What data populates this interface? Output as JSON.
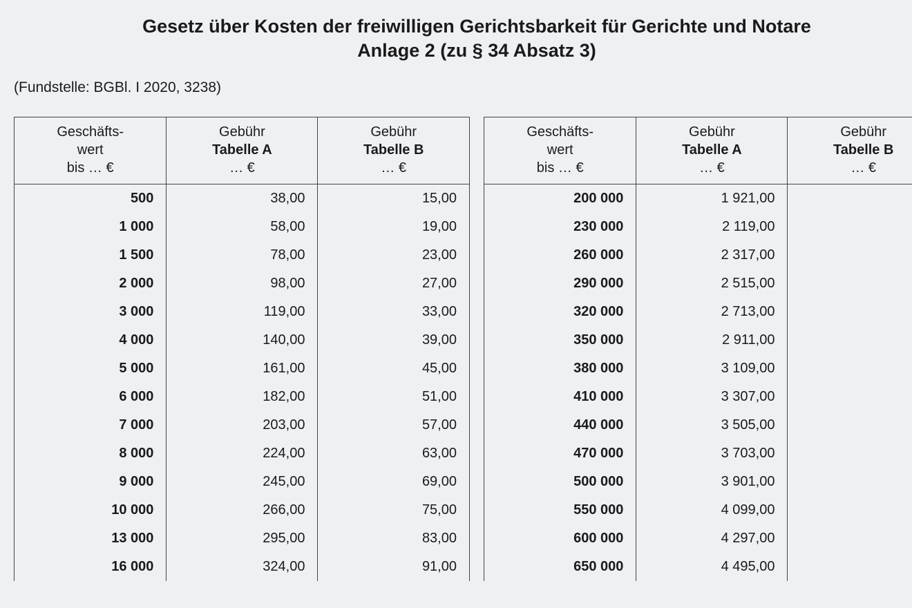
{
  "header": {
    "title": "Gesetz über Kosten der freiwilligen Gerichtsbarkeit für Gerichte und Notare",
    "subtitle": "Anlage 2 (zu § 34 Absatz 3)",
    "source": "(Fundstelle: BGBl. I 2020, 3238)"
  },
  "tableHeaders": {
    "col1_l1": "Geschäfts-",
    "col1_l2": "wert",
    "col1_l3": "bis … €",
    "col2_l1": "Gebühr",
    "col2_l2": "Tabelle A",
    "col2_l3": "… €",
    "col3_l1": "Gebühr",
    "col3_l2": "Tabelle B",
    "col3_l3": "… €"
  },
  "left": {
    "rows": [
      {
        "w": "500",
        "a": "38,00",
        "b": "15,00"
      },
      {
        "w": "1 000",
        "a": "58,00",
        "b": "19,00"
      },
      {
        "w": "1 500",
        "a": "78,00",
        "b": "23,00"
      },
      {
        "w": "2 000",
        "a": "98,00",
        "b": "27,00"
      },
      {
        "w": "3 000",
        "a": "119,00",
        "b": "33,00"
      },
      {
        "w": "4 000",
        "a": "140,00",
        "b": "39,00"
      },
      {
        "w": "5 000",
        "a": "161,00",
        "b": "45,00"
      },
      {
        "w": "6 000",
        "a": "182,00",
        "b": "51,00"
      },
      {
        "w": "7 000",
        "a": "203,00",
        "b": "57,00"
      },
      {
        "w": "8 000",
        "a": "224,00",
        "b": "63,00"
      },
      {
        "w": "9 000",
        "a": "245,00",
        "b": "69,00"
      },
      {
        "w": "10 000",
        "a": "266,00",
        "b": "75,00"
      },
      {
        "w": "13 000",
        "a": "295,00",
        "b": "83,00"
      },
      {
        "w": "16 000",
        "a": "324,00",
        "b": "91,00"
      }
    ]
  },
  "right": {
    "rows": [
      {
        "w": "200 000",
        "a": "1 921,00",
        "b": ""
      },
      {
        "w": "230 000",
        "a": "2 119,00",
        "b": ""
      },
      {
        "w": "260 000",
        "a": "2 317,00",
        "b": ""
      },
      {
        "w": "290 000",
        "a": "2 515,00",
        "b": ""
      },
      {
        "w": "320 000",
        "a": "2 713,00",
        "b": ""
      },
      {
        "w": "350 000",
        "a": "2 911,00",
        "b": ""
      },
      {
        "w": "380 000",
        "a": "3 109,00",
        "b": ""
      },
      {
        "w": "410 000",
        "a": "3 307,00",
        "b": ""
      },
      {
        "w": "440 000",
        "a": "3 505,00",
        "b": ""
      },
      {
        "w": "470 000",
        "a": "3 703,00",
        "b": ""
      },
      {
        "w": "500 000",
        "a": "3 901,00",
        "b": ""
      },
      {
        "w": "550 000",
        "a": "4 099,00",
        "b": ""
      },
      {
        "w": "600 000",
        "a": "4 297,00",
        "b": ""
      },
      {
        "w": "650 000",
        "a": "4 495,00",
        "b": ""
      }
    ]
  },
  "style": {
    "background": "#eef0f3",
    "textColor": "#1a1a1a",
    "borderColor": "#444444",
    "fontFamily": "Arial, Helvetica, sans-serif",
    "titleFontSize": 27,
    "bodyFontSize": 20,
    "sourceFontSize": 21,
    "colWidthPx": 223,
    "tableGapPx": 20
  }
}
